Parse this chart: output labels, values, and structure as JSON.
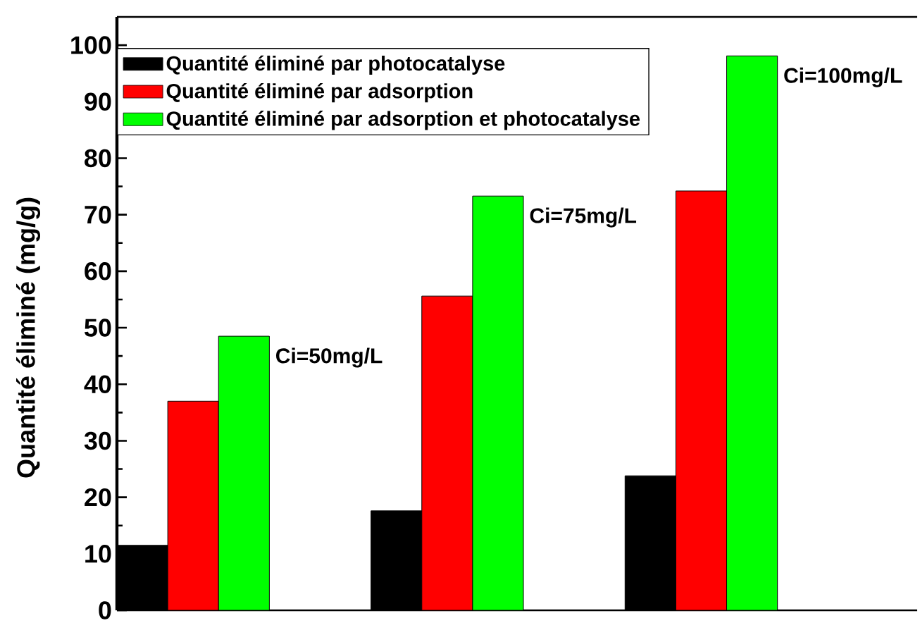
{
  "chart_data": {
    "type": "bar",
    "ylabel": "Quantité éliminé (mg/g)",
    "categories": [
      null,
      null,
      null
    ],
    "series": [
      {
        "name": "Quantité éliminé par photocatalyse",
        "color": "#000000",
        "values": [
          11.5,
          17.6,
          23.8
        ]
      },
      {
        "name": "Quantité éliminé par adsorption",
        "color": "#ff0000",
        "values": [
          37,
          55.6,
          74.2
        ]
      },
      {
        "name": "Quantité éliminé par adsorption et photocatalyse",
        "color": "#00ff00",
        "values": [
          48.5,
          73.3,
          98.1
        ]
      }
    ],
    "ylim": [
      0,
      105
    ],
    "yticks": [
      0,
      {
        "value": 5,
        "label": null
      },
      10,
      {
        "value": 15,
        "label": null
      },
      20,
      {
        "value": 25,
        "label": null
      },
      30,
      {
        "value": 35,
        "label": null
      },
      40,
      {
        "value": 45,
        "label": null
      },
      50,
      {
        "value": 55,
        "label": null
      },
      60,
      {
        "value": 65,
        "label": null
      },
      70,
      {
        "value": 75,
        "label": null
      },
      80,
      {
        "value": 85,
        "label": null
      },
      90,
      {
        "value": 95,
        "label": null
      },
      100
    ],
    "legend": "top left",
    "annotations": [
      "Ci=50mg/L",
      "Ci=75mg/L",
      "Ci=100mg/L"
    ]
  }
}
